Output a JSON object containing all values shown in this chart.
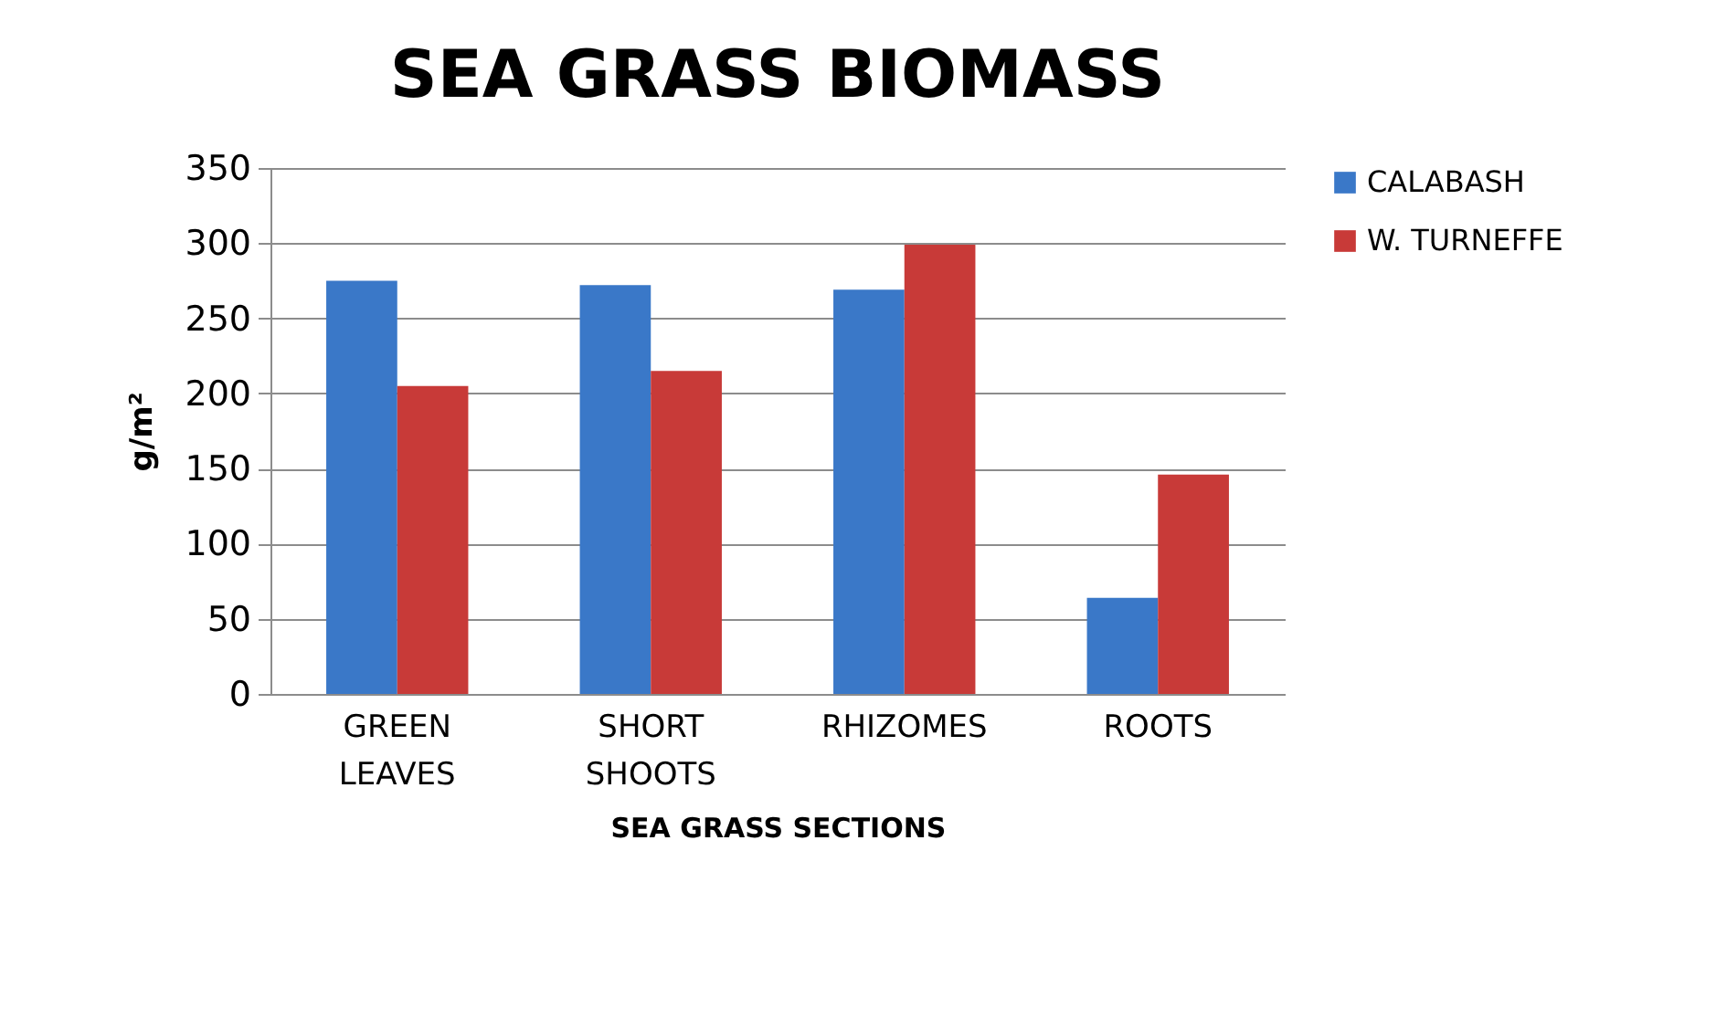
{
  "chart_data": {
    "type": "bar",
    "title": "SEA GRASS BIOMASS",
    "xlabel": "SEA GRASS SECTIONS",
    "ylabel": "g/m²",
    "categories": [
      "GREEN LEAVES",
      "SHORT SHOOTS",
      "RHIZOMES",
      "ROOTS"
    ],
    "series": [
      {
        "name": "CALABASH",
        "color": "#3a78c8",
        "values": [
          275,
          272,
          269,
          64
        ]
      },
      {
        "name": "W. TURNEFFE",
        "color": "#c83a38",
        "values": [
          205,
          215,
          299,
          146
        ]
      }
    ],
    "ylim": [
      0,
      350
    ],
    "yticks": [
      0,
      50,
      100,
      150,
      200,
      250,
      300,
      350
    ],
    "grid": "y",
    "legend": "right"
  }
}
